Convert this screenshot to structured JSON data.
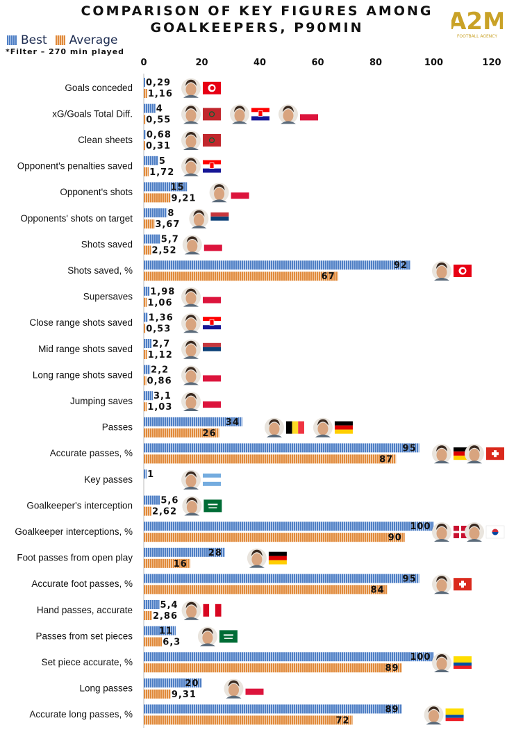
{
  "header": {
    "title_line1": "COMPARISON OF KEY FIGURES AMONG",
    "title_line2": "GOALKEEPERS, P90MIN",
    "filter_note": "*Filter – 270 min played",
    "logo_text": "A2M",
    "logo_subtext": "FOOTBALL AGENCY"
  },
  "legend": {
    "best_label": "Best",
    "average_label": "Average"
  },
  "colors": {
    "best_fill": "#4f7fc4",
    "best_stripe": "#bcd0ee",
    "avg_fill": "#e08a3c",
    "avg_stripe": "#f6d2ae",
    "logo_gold": "#c9a227"
  },
  "chart_data": {
    "type": "bar",
    "orientation": "horizontal",
    "title": "Comparison of key figures among goalkeepers, P90min",
    "xlim": [
      0,
      120
    ],
    "xticks": [
      0,
      20,
      40,
      60,
      80,
      100,
      120
    ],
    "series": [
      {
        "name": "Best",
        "labels": [
          "0,29",
          "4",
          "0,68",
          "5",
          "15",
          "8",
          "5,7",
          "92",
          "1,98",
          "1,36",
          "2,7",
          "2,2",
          "3,1",
          "34",
          "95",
          "1",
          "5,6",
          "100",
          "28",
          "95",
          "5,4",
          "11",
          "100",
          "20",
          "89"
        ],
        "values": [
          0.29,
          4,
          0.68,
          5,
          15,
          8,
          5.7,
          92,
          1.98,
          1.36,
          2.7,
          2.2,
          3.1,
          34,
          95,
          1,
          5.6,
          100,
          28,
          95,
          5.4,
          11,
          100,
          20,
          89
        ]
      },
      {
        "name": "Average",
        "labels": [
          "1,16",
          "0,55",
          "0,31",
          "1,72",
          "9,21",
          "3,67",
          "2,52",
          "67",
          "1,06",
          "0,53",
          "1,12",
          "0,86",
          "1,03",
          "26",
          "87",
          null,
          "2,62",
          "90",
          "16",
          "84",
          "2,86",
          "6,3",
          "89",
          "9,31",
          "72"
        ],
        "values": [
          1.16,
          0.55,
          0.31,
          1.72,
          9.21,
          3.67,
          2.52,
          67,
          1.06,
          0.53,
          1.12,
          0.86,
          1.03,
          26,
          87,
          null,
          2.62,
          90,
          16,
          84,
          2.86,
          6.3,
          89,
          9.31,
          72
        ]
      }
    ],
    "categories": [
      "Goals conceded",
      "xG/Goals Total Diff.",
      "Clean sheets",
      "Opponent's penalties saved",
      "Opponent's shots",
      "Opponents' shots  on target",
      "Shots saved",
      "Shots saved, %",
      "Supersaves",
      "Close range shots saved",
      "Mid range shots saved",
      "Long range shots saved",
      "Jumping saves",
      "Passes",
      "Accurate passes, %",
      "Key passes",
      "Goalkeeper's interception",
      "Goalkeeper interceptions, %",
      "Foot passes from open play",
      "Accurate foot passes, %",
      "Hand passes, accurate",
      "Passes from set pieces",
      "Set piece accurate, %",
      "Long passes",
      "Accurate long passes, %"
    ],
    "annotations": [
      {
        "category": "Goals conceded",
        "players": [
          {
            "flag": "tunisia"
          }
        ]
      },
      {
        "category": "xG/Goals Total Diff.",
        "players": [
          {
            "flag": "morocco"
          },
          {
            "flag": "croatia"
          },
          {
            "flag": "poland"
          }
        ]
      },
      {
        "category": "Clean sheets",
        "players": [
          {
            "flag": "morocco"
          }
        ]
      },
      {
        "category": "Opponent's penalties saved",
        "players": [
          {
            "flag": "croatia"
          }
        ]
      },
      {
        "category": "Opponent's shots",
        "players": [
          {
            "flag": "poland"
          }
        ]
      },
      {
        "category": "Opponents' shots  on target",
        "players": [
          {
            "flag": "serbia"
          }
        ]
      },
      {
        "category": "Shots saved",
        "players": [
          {
            "flag": "poland"
          }
        ]
      },
      {
        "category": "Shots saved, %",
        "players": [
          {
            "flag": "tunisia"
          }
        ]
      },
      {
        "category": "Supersaves",
        "players": [
          {
            "flag": "poland"
          }
        ]
      },
      {
        "category": "Close range shots saved",
        "players": [
          {
            "flag": "croatia"
          }
        ]
      },
      {
        "category": "Mid range shots saved",
        "players": [
          {
            "flag": "serbia"
          }
        ]
      },
      {
        "category": "Long range shots saved",
        "players": [
          {
            "flag": "poland"
          }
        ]
      },
      {
        "category": "Jumping saves",
        "players": [
          {
            "flag": "poland"
          }
        ]
      },
      {
        "category": "Passes",
        "players": [
          {
            "flag": "belgium"
          },
          {
            "flag": "germany"
          }
        ]
      },
      {
        "category": "Accurate passes, %",
        "players": [
          {
            "flag": "germany"
          },
          {
            "flag": "switzerland"
          }
        ]
      },
      {
        "category": "Key passes",
        "players": [
          {
            "flag": "argentina"
          }
        ]
      },
      {
        "category": "Goalkeeper's interception",
        "players": [
          {
            "flag": "saudi-arabia"
          }
        ]
      },
      {
        "category": "Goalkeeper interceptions, %",
        "players": [
          {
            "flag": "denmark"
          },
          {
            "flag": "south-korea"
          }
        ]
      },
      {
        "category": "Foot passes from open play",
        "players": [
          {
            "flag": "germany"
          }
        ]
      },
      {
        "category": "Accurate foot passes, %",
        "players": [
          {
            "flag": "switzerland"
          }
        ]
      },
      {
        "category": "Hand passes, accurate",
        "players": [
          {
            "flag": "canada"
          }
        ]
      },
      {
        "category": "Passes from set pieces",
        "players": [
          {
            "flag": "saudi-arabia"
          }
        ]
      },
      {
        "category": "Set piece accurate, %",
        "players": [
          {
            "flag": "ecuador"
          }
        ]
      },
      {
        "category": "Long passes",
        "players": [
          {
            "flag": "poland"
          }
        ]
      },
      {
        "category": "Accurate long passes, %",
        "players": [
          {
            "flag": "ecuador"
          }
        ]
      }
    ]
  }
}
